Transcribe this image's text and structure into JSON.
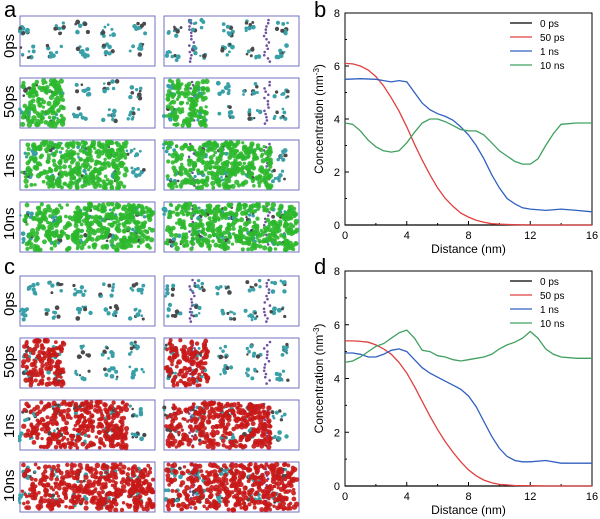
{
  "panels": [
    {
      "letter": "a",
      "rows": [
        "0ps",
        "50ps",
        "1ns",
        "10ns"
      ],
      "fill_color": "#2cb82c",
      "fill_fraction": [
        0,
        0.32,
        0.8,
        1
      ]
    },
    {
      "letter": "c",
      "rows": [
        "0ps",
        "50ps",
        "1ns",
        "10ns"
      ],
      "fill_color": "#c81818",
      "fill_fraction": [
        0,
        0.32,
        0.8,
        1
      ]
    }
  ],
  "chart_data": [
    {
      "type": "line",
      "panel": "b",
      "xlabel": "Distance (nm)",
      "ylabel": "Concentration (nm",
      "ylabel_sup": "-3",
      "ylabel_end": ")",
      "xlim": [
        0,
        16
      ],
      "ylim": [
        0,
        8
      ],
      "xticks": [
        "0",
        "4",
        "8",
        "12",
        "16"
      ],
      "yticks": [
        "0",
        "2",
        "4",
        "6",
        "8"
      ],
      "legend_position": "top-right",
      "series": [
        {
          "name": "0 ps",
          "color": "#000000",
          "x": [
            0,
            16
          ],
          "y": [
            0,
            0
          ]
        },
        {
          "name": "50 ps",
          "color": "#e04040",
          "x": [
            0,
            0.5,
            1,
            1.5,
            2,
            2.5,
            3,
            3.5,
            4,
            4.5,
            5,
            5.5,
            6,
            6.5,
            7,
            7.5,
            8,
            8.5,
            9,
            9.5,
            10,
            11,
            12,
            13,
            14,
            15,
            16
          ],
          "y": [
            6.1,
            6.08,
            6.0,
            5.85,
            5.6,
            5.25,
            4.8,
            4.3,
            3.7,
            3.05,
            2.45,
            1.9,
            1.4,
            1.0,
            0.7,
            0.45,
            0.3,
            0.18,
            0.1,
            0.05,
            0.03,
            0.01,
            0,
            0,
            0,
            0,
            0
          ]
        },
        {
          "name": "1 ns",
          "color": "#3060c0",
          "x": [
            0,
            1,
            2,
            2.5,
            3,
            3.5,
            4,
            4.5,
            5,
            5.5,
            6,
            6.5,
            7,
            7.5,
            8,
            8.5,
            9,
            9.5,
            10,
            10.5,
            11,
            11.5,
            12,
            13,
            14,
            15,
            16
          ],
          "y": [
            5.5,
            5.52,
            5.5,
            5.45,
            5.4,
            5.45,
            5.4,
            5.0,
            4.6,
            4.35,
            4.2,
            4.1,
            3.95,
            3.7,
            3.4,
            3.0,
            2.5,
            1.9,
            1.4,
            1.0,
            0.8,
            0.65,
            0.6,
            0.55,
            0.6,
            0.55,
            0.5
          ]
        },
        {
          "name": "10 ns",
          "color": "#40a060",
          "x": [
            0,
            0.5,
            1,
            1.5,
            2,
            2.5,
            3,
            3.5,
            4,
            4.5,
            5,
            5.5,
            6,
            6.5,
            7,
            7.5,
            8,
            8.5,
            9,
            9.5,
            10,
            10.5,
            11,
            11.5,
            12,
            12.5,
            13,
            13.5,
            14,
            15,
            16
          ],
          "y": [
            3.85,
            3.8,
            3.55,
            3.2,
            2.95,
            2.8,
            2.75,
            2.8,
            3.1,
            3.5,
            3.85,
            4.0,
            4.0,
            3.9,
            3.75,
            3.6,
            3.55,
            3.55,
            3.4,
            3.1,
            2.8,
            2.6,
            2.4,
            2.3,
            2.3,
            2.5,
            3.0,
            3.45,
            3.8,
            3.85,
            3.85
          ]
        }
      ]
    },
    {
      "type": "line",
      "panel": "d",
      "xlabel": "Distance (nm)",
      "ylabel": "Concentration (nm",
      "ylabel_sup": "-3",
      "ylabel_end": ")",
      "xlim": [
        0,
        16
      ],
      "ylim": [
        0,
        8
      ],
      "xticks": [
        "0",
        "4",
        "8",
        "12",
        "16"
      ],
      "yticks": [
        "0",
        "2",
        "4",
        "6",
        "8"
      ],
      "legend_position": "top-right",
      "series": [
        {
          "name": "0 ps",
          "color": "#000000",
          "x": [
            0,
            16
          ],
          "y": [
            0,
            0
          ]
        },
        {
          "name": "50 ps",
          "color": "#e04040",
          "x": [
            0,
            0.5,
            1,
            1.5,
            2,
            2.5,
            3,
            3.5,
            4,
            4.5,
            5,
            5.5,
            6,
            6.5,
            7,
            7.5,
            8,
            8.5,
            9,
            9.5,
            10,
            11,
            12,
            13,
            14,
            15,
            16
          ],
          "y": [
            5.4,
            5.4,
            5.38,
            5.35,
            5.25,
            5.1,
            4.9,
            4.6,
            4.2,
            3.7,
            3.15,
            2.6,
            2.1,
            1.65,
            1.25,
            0.9,
            0.6,
            0.38,
            0.22,
            0.12,
            0.06,
            0.02,
            0.01,
            0,
            0,
            0,
            0
          ]
        },
        {
          "name": "1 ns",
          "color": "#3060c0",
          "x": [
            0,
            0.5,
            1,
            1.5,
            2,
            2.5,
            3,
            3.5,
            4,
            4.5,
            5,
            5.5,
            6,
            6.5,
            7,
            7.5,
            8,
            8.5,
            9,
            9.5,
            10,
            10.5,
            11,
            11.5,
            12,
            13,
            14,
            15,
            16
          ],
          "y": [
            4.95,
            4.95,
            4.9,
            4.8,
            4.8,
            4.9,
            5.05,
            5.1,
            5.0,
            4.7,
            4.4,
            4.2,
            4.05,
            3.9,
            3.75,
            3.6,
            3.35,
            2.95,
            2.4,
            1.85,
            1.4,
            1.1,
            0.95,
            0.9,
            0.9,
            0.95,
            0.85,
            0.85,
            0.85
          ]
        },
        {
          "name": "10 ns",
          "color": "#40a060",
          "x": [
            0,
            0.5,
            1,
            1.5,
            2,
            2.5,
            3,
            3.5,
            4,
            4.5,
            5,
            5.5,
            6,
            6.5,
            7,
            7.5,
            8,
            8.5,
            9,
            9.5,
            10,
            10.5,
            11,
            11.5,
            12,
            12.5,
            13,
            13.5,
            14,
            15,
            16
          ],
          "y": [
            4.6,
            4.65,
            4.8,
            5.0,
            5.2,
            5.3,
            5.5,
            5.7,
            5.8,
            5.5,
            5.05,
            5.0,
            4.85,
            4.8,
            4.7,
            4.65,
            4.7,
            4.75,
            4.8,
            4.9,
            5.1,
            5.25,
            5.35,
            5.5,
            5.75,
            5.5,
            5.1,
            4.9,
            4.8,
            4.75,
            4.75
          ]
        }
      ]
    }
  ]
}
